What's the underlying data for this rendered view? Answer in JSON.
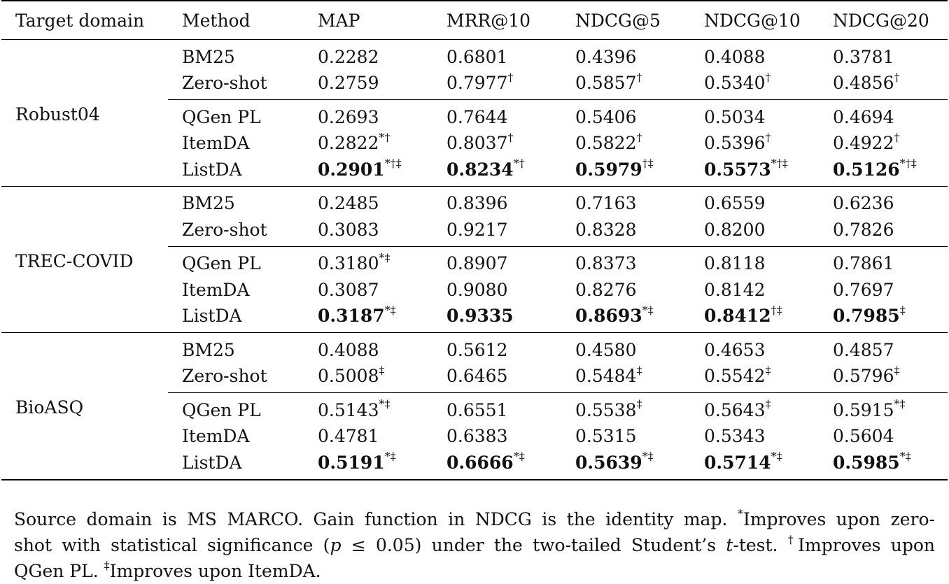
{
  "headers": [
    "Target domain",
    "Method",
    "MAP",
    "MRR@10",
    "NDCG@5",
    "NDCG@10",
    "NDCG@20"
  ],
  "groups": [
    {
      "domain": "Robust04",
      "rows": [
        {
          "method": "BM25",
          "cells": [
            {
              "v": "0.2282",
              "s": ""
            },
            {
              "v": "0.6801",
              "s": ""
            },
            {
              "v": "0.4396",
              "s": ""
            },
            {
              "v": "0.4088",
              "s": ""
            },
            {
              "v": "0.3781",
              "s": ""
            }
          ]
        },
        {
          "method": "Zero-shot",
          "cells": [
            {
              "v": "0.2759",
              "s": ""
            },
            {
              "v": "0.7977",
              "s": "†"
            },
            {
              "v": "0.5857",
              "s": "†"
            },
            {
              "v": "0.5340",
              "s": "†"
            },
            {
              "v": "0.4856",
              "s": "†"
            }
          ]
        },
        {
          "method": "QGen PL",
          "cells": [
            {
              "v": "0.2693",
              "s": ""
            },
            {
              "v": "0.7644",
              "s": ""
            },
            {
              "v": "0.5406",
              "s": ""
            },
            {
              "v": "0.5034",
              "s": ""
            },
            {
              "v": "0.4694",
              "s": ""
            }
          ]
        },
        {
          "method": "ItemDA",
          "cells": [
            {
              "v": "0.2822",
              "s": "*†"
            },
            {
              "v": "0.8037",
              "s": "†"
            },
            {
              "v": "0.5822",
              "s": "†"
            },
            {
              "v": "0.5396",
              "s": "†"
            },
            {
              "v": "0.4922",
              "s": "†"
            }
          ]
        },
        {
          "method": "ListDA",
          "bold": true,
          "cells": [
            {
              "v": "0.2901",
              "s": "*†‡"
            },
            {
              "v": "0.8234",
              "s": "*†"
            },
            {
              "v": "0.5979",
              "s": "†‡"
            },
            {
              "v": "0.5573",
              "s": "*†‡"
            },
            {
              "v": "0.5126",
              "s": "*†‡"
            }
          ]
        }
      ]
    },
    {
      "domain": "TREC-COVID",
      "rows": [
        {
          "method": "BM25",
          "cells": [
            {
              "v": "0.2485",
              "s": ""
            },
            {
              "v": "0.8396",
              "s": ""
            },
            {
              "v": "0.7163",
              "s": ""
            },
            {
              "v": "0.6559",
              "s": ""
            },
            {
              "v": "0.6236",
              "s": ""
            }
          ]
        },
        {
          "method": "Zero-shot",
          "cells": [
            {
              "v": "0.3083",
              "s": ""
            },
            {
              "v": "0.9217",
              "s": ""
            },
            {
              "v": "0.8328",
              "s": ""
            },
            {
              "v": "0.8200",
              "s": ""
            },
            {
              "v": "0.7826",
              "s": ""
            }
          ]
        },
        {
          "method": "QGen PL",
          "cells": [
            {
              "v": "0.3180",
              "s": "*‡"
            },
            {
              "v": "0.8907",
              "s": ""
            },
            {
              "v": "0.8373",
              "s": ""
            },
            {
              "v": "0.8118",
              "s": ""
            },
            {
              "v": "0.7861",
              "s": ""
            }
          ]
        },
        {
          "method": "ItemDA",
          "cells": [
            {
              "v": "0.3087",
              "s": ""
            },
            {
              "v": "0.9080",
              "s": ""
            },
            {
              "v": "0.8276",
              "s": ""
            },
            {
              "v": "0.8142",
              "s": ""
            },
            {
              "v": "0.7697",
              "s": ""
            }
          ]
        },
        {
          "method": "ListDA",
          "bold": true,
          "cells": [
            {
              "v": "0.3187",
              "s": "*‡"
            },
            {
              "v": "0.9335",
              "s": ""
            },
            {
              "v": "0.8693",
              "s": "*‡"
            },
            {
              "v": "0.8412",
              "s": "†‡"
            },
            {
              "v": "0.7985",
              "s": "‡"
            }
          ]
        }
      ]
    },
    {
      "domain": "BioASQ",
      "rows": [
        {
          "method": "BM25",
          "cells": [
            {
              "v": "0.4088",
              "s": ""
            },
            {
              "v": "0.5612",
              "s": ""
            },
            {
              "v": "0.4580",
              "s": ""
            },
            {
              "v": "0.4653",
              "s": ""
            },
            {
              "v": "0.4857",
              "s": ""
            }
          ]
        },
        {
          "method": "Zero-shot",
          "cells": [
            {
              "v": "0.5008",
              "s": "‡"
            },
            {
              "v": "0.6465",
              "s": ""
            },
            {
              "v": "0.5484",
              "s": "‡"
            },
            {
              "v": "0.5542",
              "s": "‡"
            },
            {
              "v": "0.5796",
              "s": "‡"
            }
          ]
        },
        {
          "method": "QGen PL",
          "cells": [
            {
              "v": "0.5143",
              "s": "*‡"
            },
            {
              "v": "0.6551",
              "s": ""
            },
            {
              "v": "0.5538",
              "s": "‡"
            },
            {
              "v": "0.5643",
              "s": "‡"
            },
            {
              "v": "0.5915",
              "s": "*‡"
            }
          ]
        },
        {
          "method": "ItemDA",
          "cells": [
            {
              "v": "0.4781",
              "s": ""
            },
            {
              "v": "0.6383",
              "s": ""
            },
            {
              "v": "0.5315",
              "s": ""
            },
            {
              "v": "0.5343",
              "s": ""
            },
            {
              "v": "0.5604",
              "s": ""
            }
          ]
        },
        {
          "method": "ListDA",
          "bold": true,
          "cells": [
            {
              "v": "0.5191",
              "s": "*‡"
            },
            {
              "v": "0.6666",
              "s": "*‡"
            },
            {
              "v": "0.5639",
              "s": "*‡"
            },
            {
              "v": "0.5714",
              "s": "*‡"
            },
            {
              "v": "0.5985",
              "s": "*‡"
            }
          ]
        }
      ]
    }
  ],
  "note": {
    "line1_a": "Source domain is MS MARCO. Gain function in NDCG is the identity map. ",
    "line1_star": "*",
    "line1_b": "Improves upon zero-",
    "line2_a": "shot with statistical significance (",
    "line2_p": "p",
    "line2_b": " ≤ 0.05) under the two-tailed Student’s ",
    "line2_t": "t",
    "line2_c": "-test. ",
    "line2_dagger": "†",
    "line2_d": "Improves upon",
    "line3_a": "QGen PL. ",
    "line3_ddagger": "‡",
    "line3_b": "Improves upon ItemDA."
  }
}
